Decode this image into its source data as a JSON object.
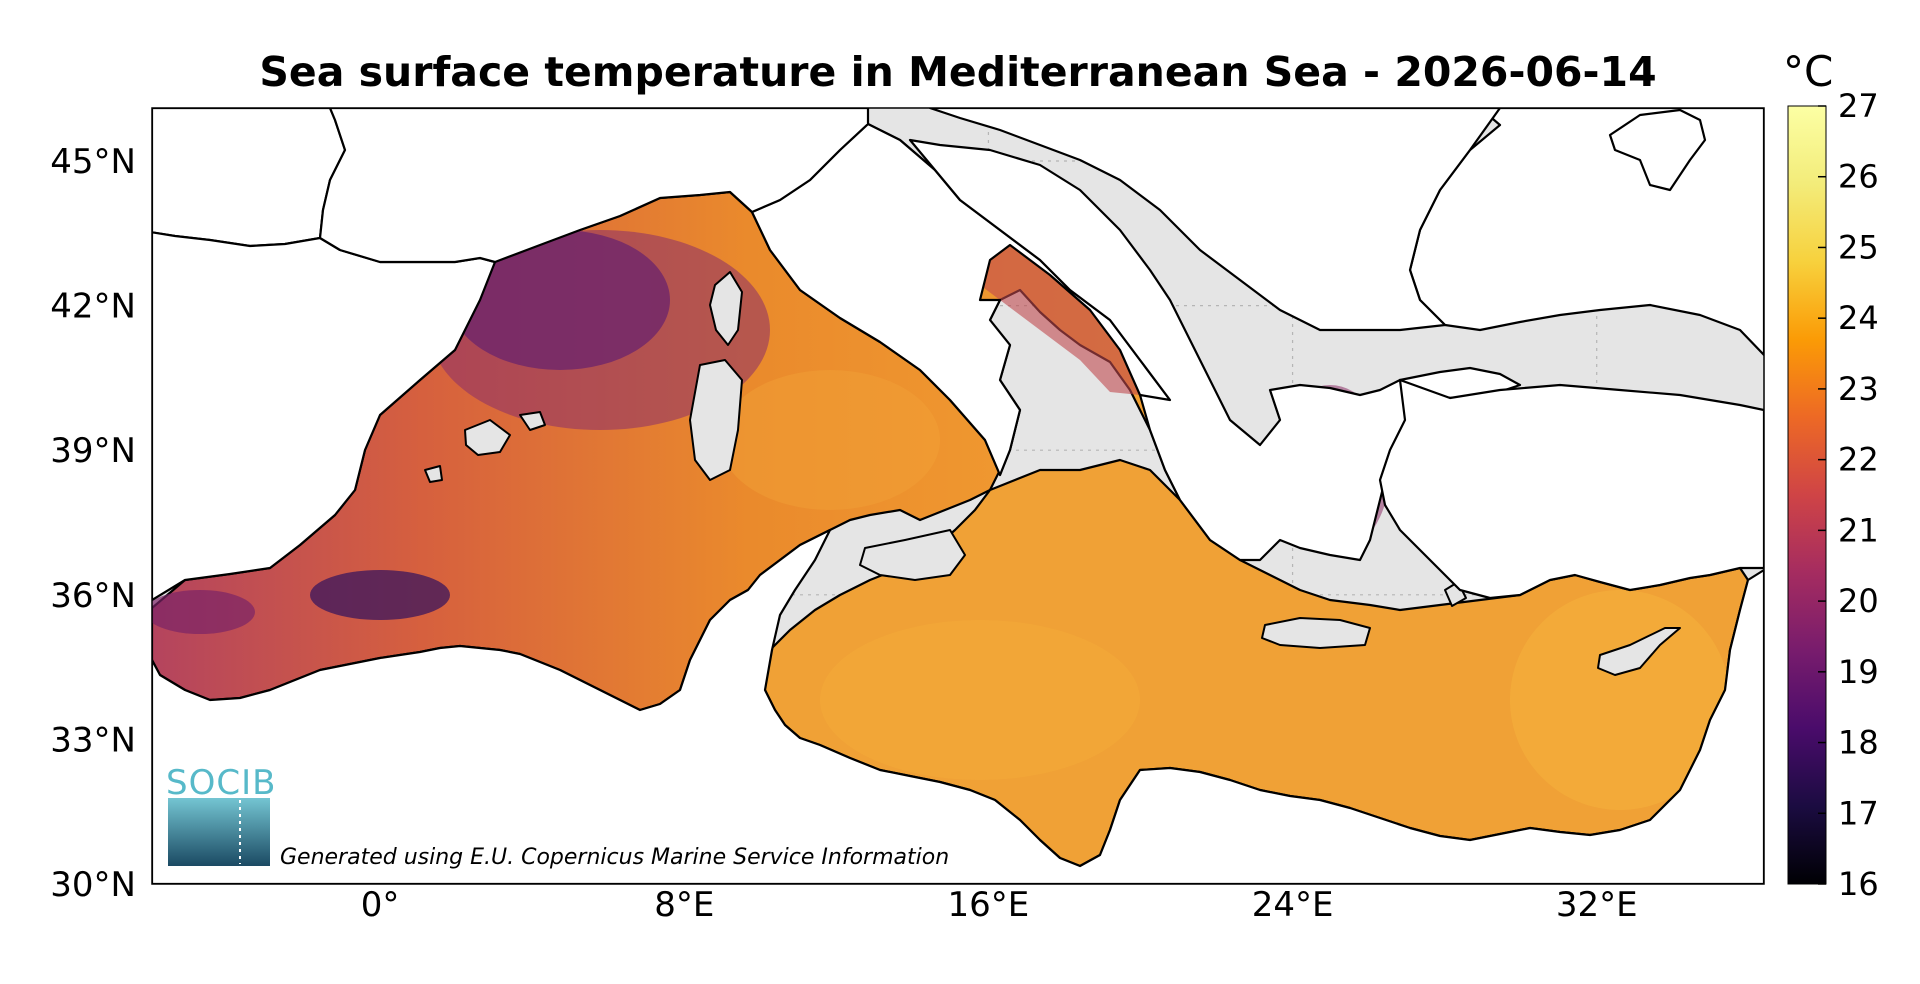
{
  "map": {
    "title": "Sea surface temperature in Mediterranean Sea - 2026-06-14",
    "variable": "Sea surface temperature",
    "region": "Mediterranean Sea",
    "date": "2026-06-14",
    "lat_ticks": [
      "45°N",
      "42°N",
      "39°N",
      "36°N",
      "33°N",
      "30°N"
    ],
    "lon_ticks": [
      "0°",
      "8°E",
      "16°E",
      "24°E",
      "32°E"
    ],
    "lat_values": [
      45,
      42,
      39,
      36,
      33,
      30
    ],
    "lon_values": [
      0,
      8,
      16,
      24,
      32
    ],
    "lat_range": [
      30,
      46.1
    ],
    "lon_range": [
      -6,
      36.4
    ],
    "grid": true,
    "land_color": "#ffffff",
    "no_data_color": "#e5e5e5",
    "credit": "Generated using E.U. Copernicus Marine Service Information"
  },
  "colorbar": {
    "unit": "°C",
    "colormap": "inferno",
    "min": 16,
    "max": 27,
    "ticks": [
      "27",
      "26",
      "25",
      "24",
      "23",
      "22",
      "21",
      "20",
      "19",
      "18",
      "17",
      "16"
    ],
    "placement": "right"
  },
  "logo": {
    "text": "SOCIB"
  }
}
